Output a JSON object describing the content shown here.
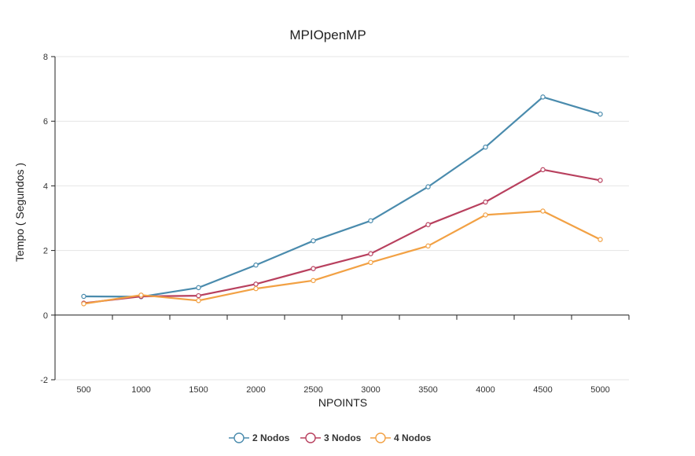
{
  "chart_data": {
    "type": "line",
    "title": "MPIOpenMP",
    "xlabel": "NPOINTS",
    "ylabel": "Tempo ( Segundos )",
    "x": [
      500,
      1000,
      1500,
      2000,
      2500,
      3000,
      3500,
      4000,
      4500,
      5000
    ],
    "x_tick_labels": [
      "500",
      "1000",
      "1500",
      "2000",
      "2500",
      "3000",
      "3500",
      "4000",
      "4500",
      "5000"
    ],
    "ylim": [
      -2,
      8
    ],
    "y_ticks": [
      -2,
      0,
      2,
      4,
      6,
      8
    ],
    "y_tick_labels": [
      "-2",
      "0",
      "2",
      "4",
      "6",
      "8"
    ],
    "grid": true,
    "legend_position": "bottom",
    "series": [
      {
        "name": "2 Nodos",
        "color": "#4a8bad",
        "values": [
          0.58,
          0.57,
          0.85,
          1.55,
          2.3,
          2.92,
          3.97,
          5.2,
          6.75,
          6.22
        ]
      },
      {
        "name": "3 Nodos",
        "color": "#b8405e",
        "values": [
          0.37,
          0.58,
          0.6,
          0.96,
          1.44,
          1.9,
          2.8,
          3.5,
          4.5,
          4.17
        ]
      },
      {
        "name": "4 Nodos",
        "color": "#f2a144",
        "values": [
          0.35,
          0.62,
          0.45,
          0.82,
          1.07,
          1.63,
          2.14,
          3.1,
          3.22,
          2.34
        ]
      }
    ]
  }
}
